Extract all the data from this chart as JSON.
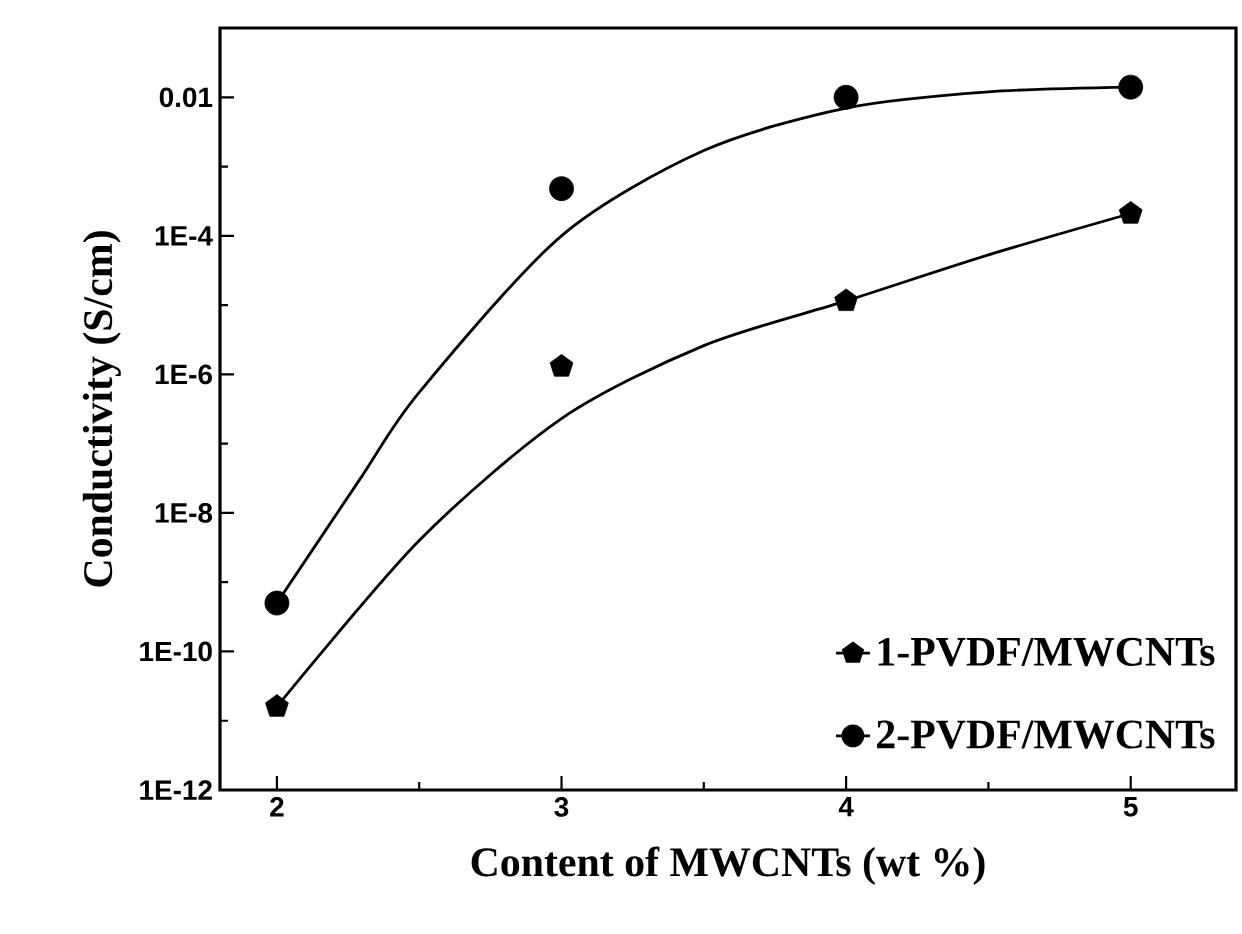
{
  "chart_data": {
    "type": "scatter",
    "xlabel": "Content of MWCNTs (wt %)",
    "ylabel": "Conductivity (S/cm)",
    "log": "y",
    "xlim": [
      1.8,
      5.37
    ],
    "ylim": [
      1e-12,
      0.1
    ],
    "xticks": [
      2,
      3,
      4,
      5
    ],
    "yticks": [
      {
        "value": 1e-12,
        "label": "1E-12"
      },
      {
        "value": 1e-10,
        "label": "1E-10"
      },
      {
        "value": 1e-08,
        "label": "1E-8"
      },
      {
        "value": 1e-06,
        "label": "1E-6"
      },
      {
        "value": 0.0001,
        "label": "1E-4"
      },
      0.01
    ],
    "legend": "bottom right",
    "grid": false,
    "series": [
      {
        "name": "1-PVDF/MWCNTs",
        "color": "#000000",
        "x": [
          2,
          3,
          4,
          5
        ],
        "values": [
          1.6e-11,
          1.3e-06,
          1.15e-05,
          0.00021
        ]
      },
      {
        "name": "2-PVDF/MWCNTs",
        "marker": "circle",
        "color": "#000000",
        "x": [
          2,
          3,
          4,
          5
        ],
        "values": [
          5e-10,
          0.00048,
          0.01,
          0.014
        ]
      },
      {
        "type": "line",
        "marker": "none",
        "line_style": "solid",
        "color": "#000000",
        "x": [
          2,
          2.5,
          3,
          3.5,
          4,
          4.5,
          5
        ],
        "values": [
          1.6e-11,
          4e-09,
          2.3e-07,
          2.6e-06,
          1.15e-05,
          5.3e-05,
          0.00021
        ]
      },
      {
        "type": "line",
        "marker": "none",
        "line_style": "solid",
        "color": "#000000",
        "x": [
          2,
          2.29,
          2.5,
          3,
          3.5,
          4,
          4.5,
          5
        ],
        "values": [
          5e-10,
          3e-08,
          5.5e-07,
          0.0001,
          0.0017,
          0.007,
          0.012,
          0.014
        ]
      }
    ]
  }
}
